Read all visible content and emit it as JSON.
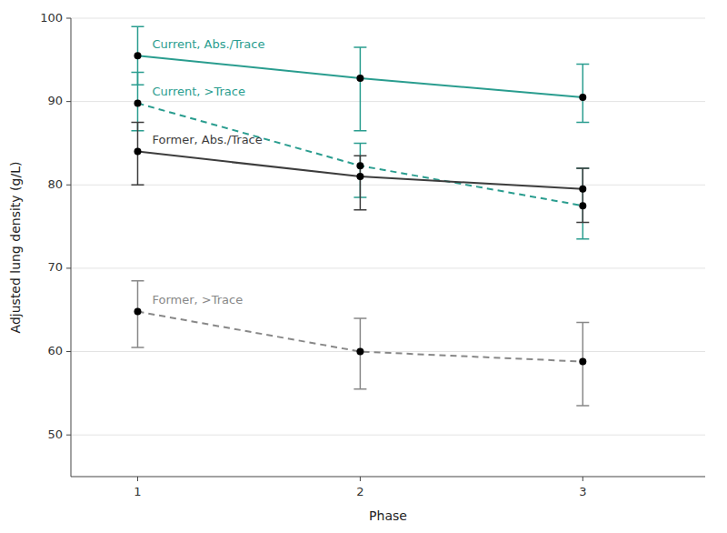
{
  "chart_data": {
    "type": "line",
    "xlabel": "Phase",
    "ylabel": "Adjusted lung density (g/L)",
    "x": [
      1,
      2,
      3
    ],
    "xlim": [
      0.7,
      3.55
    ],
    "xticks": [
      1,
      2,
      3
    ],
    "ylim": [
      45,
      100
    ],
    "yticks": [
      50,
      60,
      70,
      80,
      90,
      100
    ],
    "grid": true,
    "marker": "circle",
    "series": [
      {
        "name": "Current, Abs./Trace",
        "color": "#2a9d8f",
        "line_style": "solid",
        "values": [
          95.5,
          92.8,
          90.5
        ],
        "ci_lower": [
          92.0,
          86.5,
          87.5
        ],
        "ci_upper": [
          99.0,
          96.5,
          94.5
        ]
      },
      {
        "name": "Current, >Trace",
        "color": "#2a9d8f",
        "line_style": "dashed",
        "values": [
          89.8,
          82.3,
          77.5
        ],
        "ci_lower": [
          86.5,
          78.5,
          73.5
        ],
        "ci_upper": [
          93.5,
          85.0,
          82.0
        ]
      },
      {
        "name": "Former, Abs./Trace",
        "color": "#3d3d3d",
        "line_style": "solid",
        "values": [
          84.0,
          81.0,
          79.5
        ],
        "ci_lower": [
          80.0,
          77.0,
          75.5
        ],
        "ci_upper": [
          87.5,
          83.5,
          82.0
        ]
      },
      {
        "name": "Former, >Trace",
        "color": "#888888",
        "line_style": "dashed",
        "values": [
          64.8,
          60.0,
          58.8
        ],
        "ci_lower": [
          60.5,
          55.5,
          53.5
        ],
        "ci_upper": [
          68.5,
          64.0,
          63.5
        ]
      }
    ]
  }
}
